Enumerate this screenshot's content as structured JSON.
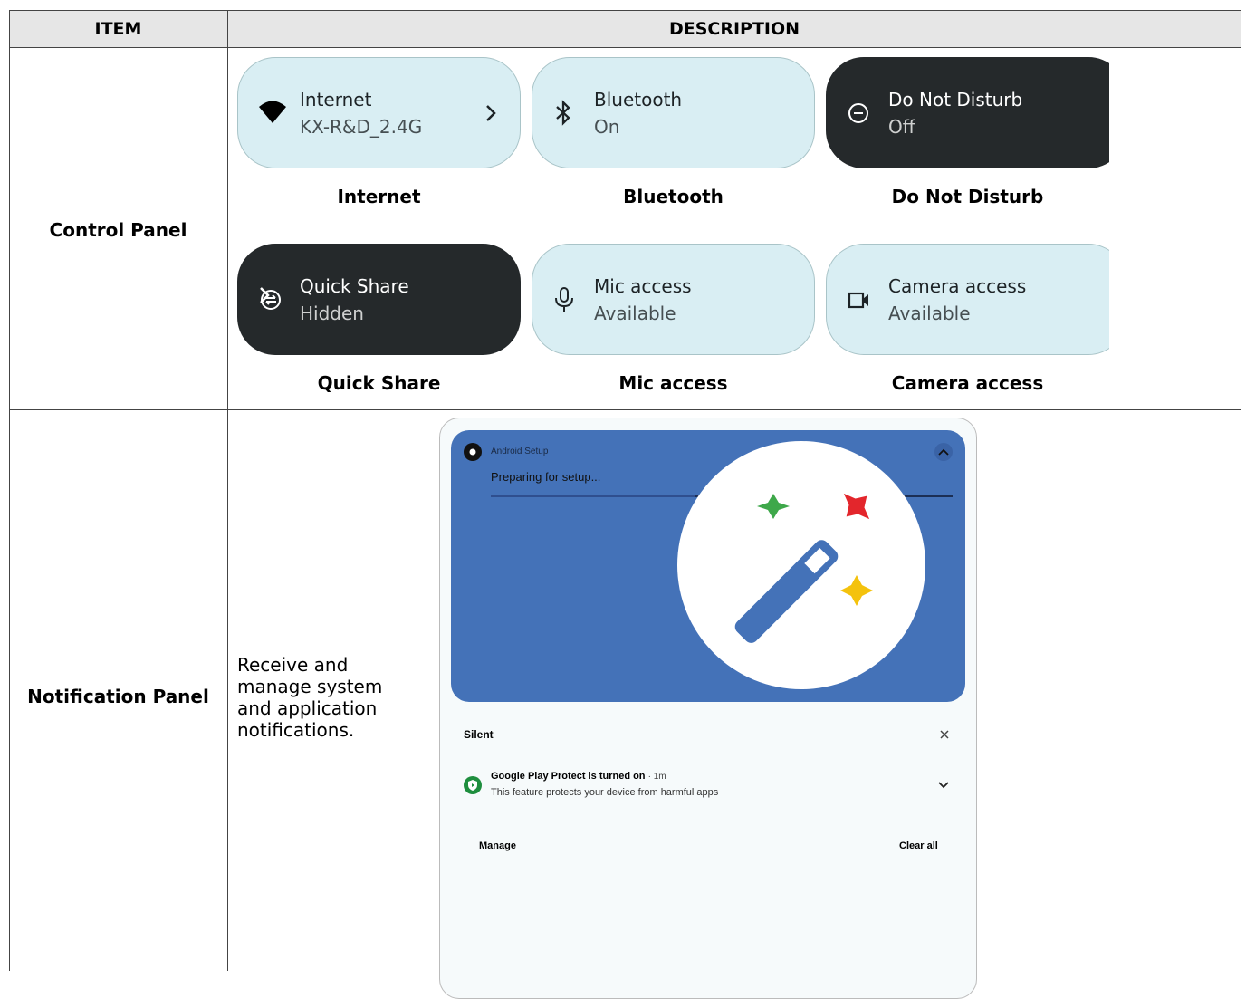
{
  "table": {
    "headers": [
      "ITEM",
      "DESCRIPTION"
    ],
    "rows": [
      {
        "item": "Control Panel",
        "tiles": [
          {
            "title": "Internet",
            "status": "KX-R&D_2.4G",
            "caption": "Internet"
          },
          {
            "title": "Bluetooth",
            "status": "On",
            "caption": "Bluetooth"
          },
          {
            "title": "Do Not Disturb",
            "status": "Off",
            "caption": "Do Not Disturb"
          },
          {
            "title": "Quick Share",
            "status": "Hidden",
            "caption": "Quick Share"
          },
          {
            "title": "Mic access",
            "status": "Available",
            "caption": "Mic access"
          },
          {
            "title": "Camera access",
            "status": "Available",
            "caption": "Camera access"
          }
        ]
      },
      {
        "item": "Notification Panel",
        "description": "Receive and manage system and application notifications.",
        "screenshot": {
          "app": "Android Setup",
          "message": "Preparing for setup...",
          "section": "Silent",
          "notification_title": "Google Play Protect is turned on",
          "notification_time": "· 1m",
          "notification_text": "This feature protects your device from harmful apps",
          "manage": "Manage",
          "clear": "Clear all"
        }
      }
    ]
  }
}
